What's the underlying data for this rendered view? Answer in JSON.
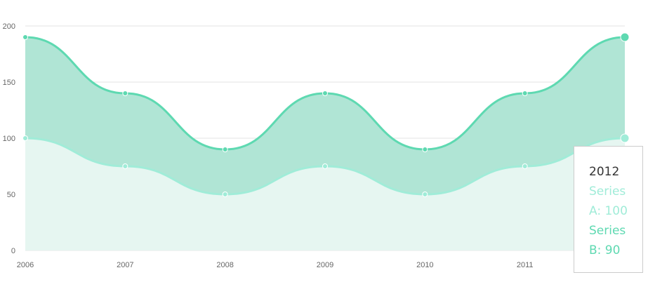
{
  "chart_data": {
    "type": "area",
    "x": [
      "2006",
      "2007",
      "2008",
      "2009",
      "2010",
      "2011",
      "2012"
    ],
    "yticks": [
      0,
      50,
      100,
      150,
      200
    ],
    "ylim": [
      0,
      200
    ],
    "grid": true,
    "series": [
      {
        "name": "Series A",
        "values": [
          100,
          75,
          50,
          75,
          50,
          75,
          100
        ],
        "color": "#a0ecd8",
        "fill": "#e6f6f1"
      },
      {
        "name": "Series B",
        "values": [
          90,
          65,
          40,
          65,
          40,
          65,
          90
        ],
        "color": "#5ed9b1",
        "fill": "#b0e5d5"
      }
    ],
    "tooltip": {
      "title": "2012",
      "line_a": [
        "Series",
        "A: 100"
      ],
      "line_b": [
        "Series",
        "B: 90"
      ]
    }
  }
}
